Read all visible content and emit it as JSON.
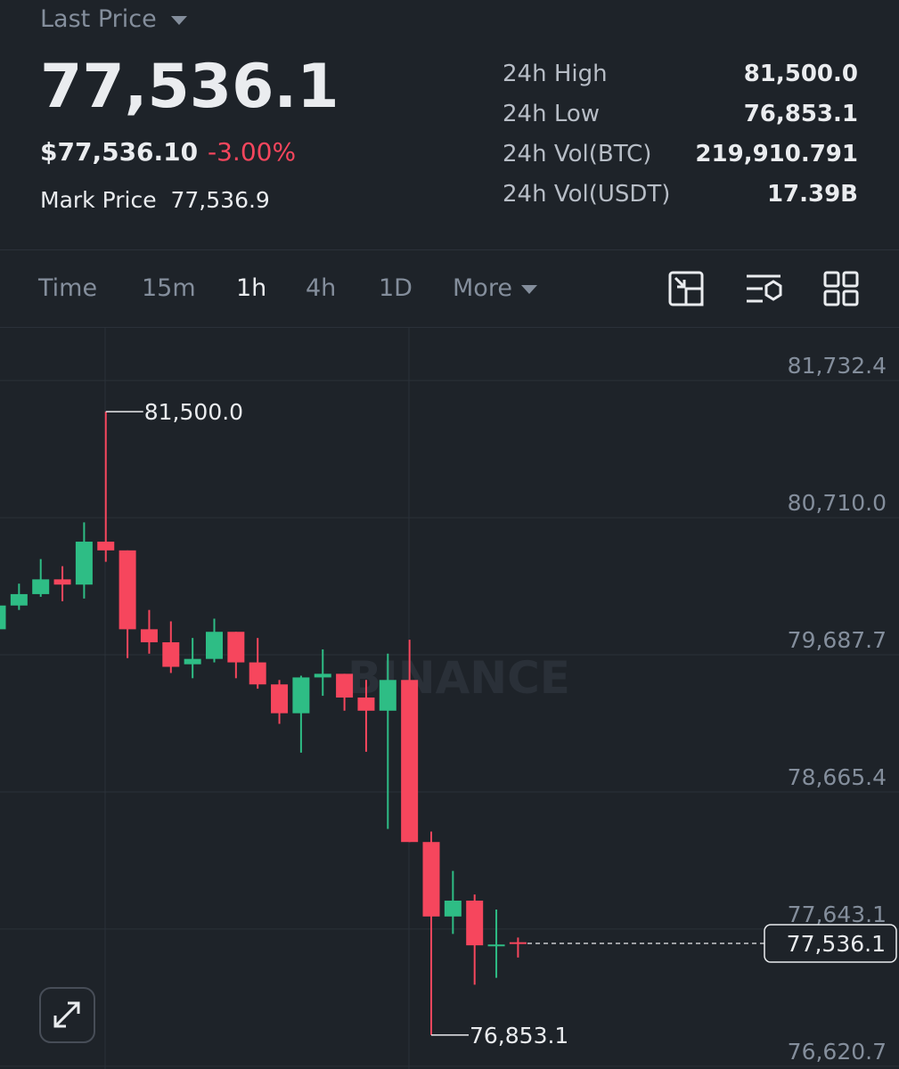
{
  "header": {
    "last_price_label": "Last Price",
    "last_price": "77,536.1",
    "usd_price": "$77,536.10",
    "change": "-3.00%",
    "mark_price_label": "Mark Price",
    "mark_price": "77,536.9",
    "stats": [
      {
        "label": "24h High",
        "value": "81,500.0"
      },
      {
        "label": "24h Low",
        "value": "76,853.1"
      },
      {
        "label": "24h Vol(BTC)",
        "value": "219,910.791"
      },
      {
        "label": "24h Vol(USDT)",
        "value": "17.39B"
      }
    ]
  },
  "tabs": [
    "Time",
    "15m",
    "1h",
    "4h",
    "1D",
    "More"
  ],
  "active_tab": 2,
  "chart_data": {
    "type": "candlestick",
    "watermark": "BINANCE",
    "up_color": "#2ebd85",
    "down_color": "#f6465d",
    "open": [
      79878,
      80055,
      80140,
      80250,
      80211,
      80531,
      80466,
      79878,
      79781,
      79617,
      79657,
      79859,
      79631,
      79467,
      79252,
      79519,
      79546,
      79369,
      79271,
      79500,
      78292,
      77737,
      77855,
      77522,
      77545
    ],
    "high": [
      80153,
      80218,
      80401,
      80348,
      80675,
      81500.0,
      80466,
      80022,
      79937,
      79813,
      79957,
      79859,
      79813,
      79500,
      79532,
      79728,
      79546,
      79500,
      79696,
      79800,
      78370,
      78077,
      77901,
      77789,
      77580
    ],
    "low": [
      79878,
      80022,
      80120,
      80087,
      80107,
      80381,
      79663,
      79696,
      79552,
      79513,
      79631,
      79513,
      79435,
      79173,
      78958,
      79382,
      79271,
      78965,
      78390,
      78292,
      76853.1,
      77607,
      77228,
      77280,
      77431
    ],
    "close": [
      80055,
      80140,
      80250,
      80211,
      80531,
      80466,
      79878,
      79781,
      79598,
      79657,
      79859,
      79631,
      79467,
      79252,
      79519,
      79546,
      79369,
      79271,
      79500,
      78292,
      77737,
      77855,
      77522,
      77528,
      77536.1
    ],
    "ylim": [
      76600,
      82125
    ],
    "yticks": [
      {
        "value": 81732.4,
        "label": "81,732.4"
      },
      {
        "value": 80710.0,
        "label": "80,710.0"
      },
      {
        "value": 79687.7,
        "label": "79,687.7"
      },
      {
        "value": 78665.4,
        "label": "78,665.4"
      },
      {
        "value": 77643.1,
        "label": "77,643.1"
      },
      {
        "value": 76620.7,
        "label": "76,620.7"
      }
    ],
    "grid": true,
    "high_marker": {
      "value": 81500.0,
      "label": "81,500.0"
    },
    "low_marker": {
      "value": 76853.1,
      "label": "76,853.1"
    },
    "last_price": {
      "value": 77536.1,
      "label": "77,536.1"
    }
  }
}
